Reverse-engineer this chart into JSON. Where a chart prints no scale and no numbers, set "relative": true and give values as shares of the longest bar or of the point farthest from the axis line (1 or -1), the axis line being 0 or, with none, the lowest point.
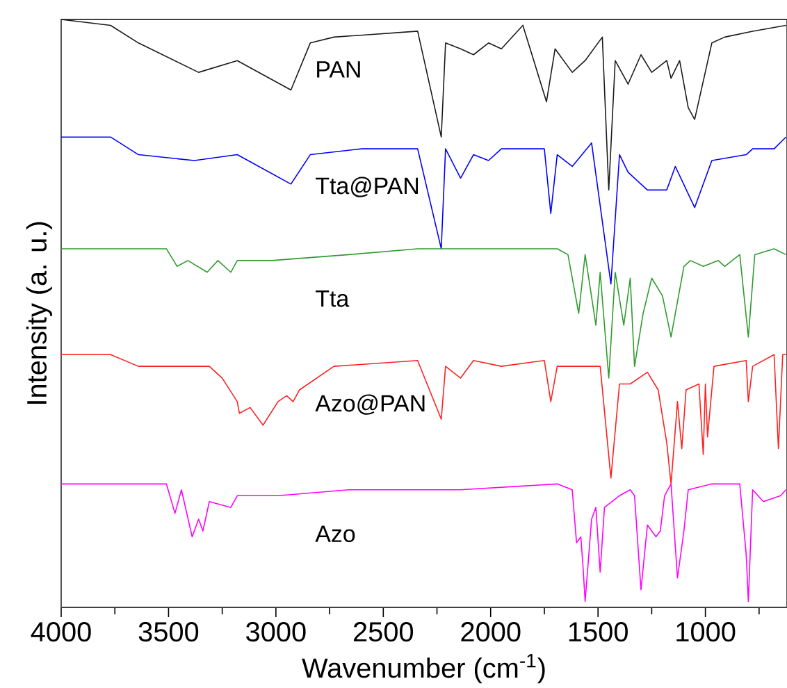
{
  "chart_data": {
    "type": "line",
    "relative": true,
    "xlabel": "Wavenumber (cm$^{-1}$)",
    "ylabel": "Intensity (a. u.)",
    "xlim": [
      4000,
      620
    ],
    "xticks": [
      4000,
      {
        "value": 3750,
        "label": null
      },
      3500,
      {
        "value": 3250,
        "label": null
      },
      3000,
      {
        "value": 2750,
        "label": null
      },
      2500,
      {
        "value": 2250,
        "label": null
      },
      2000,
      {
        "value": 1750,
        "label": null
      },
      1500,
      {
        "value": 1250,
        "label": null
      },
      1000,
      {
        "value": 750,
        "label": null
      }
    ],
    "line_style": "solid",
    "marker": "none",
    "grid": false,
    "series": [
      {
        "name": "PAN",
        "color": "#1a1a1a",
        "x": [
          4000,
          3770,
          3640,
          3360,
          3180,
          2930,
          2840,
          2730,
          2340,
          2230,
          2210,
          2140,
          2080,
          2010,
          1950,
          1850,
          1740,
          1700,
          1620,
          1560,
          1480,
          1450,
          1420,
          1360,
          1300,
          1250,
          1180,
          1160,
          1120,
          1080,
          1050,
          970,
          910,
          780,
          625
        ],
        "values": [
          1,
          0.99,
          0.96,
          0.91,
          0.93,
          0.88,
          0.96,
          0.97,
          0.98,
          0.8,
          0.96,
          0.95,
          0.94,
          0.96,
          0.95,
          0.99,
          0.86,
          0.95,
          0.91,
          0.93,
          0.97,
          0.71,
          0.93,
          0.89,
          0.94,
          0.91,
          0.93,
          0.9,
          0.93,
          0.85,
          0.83,
          0.96,
          0.97,
          0.98,
          0.99
        ]
      },
      {
        "name": "Tta@PAN",
        "color": "#0000ff",
        "x": [
          4000,
          3770,
          3640,
          3380,
          3180,
          2930,
          2840,
          2600,
          2340,
          2230,
          2210,
          2140,
          2080,
          2010,
          1950,
          1750,
          1720,
          1690,
          1620,
          1530,
          1440,
          1400,
          1360,
          1270,
          1180,
          1140,
          1050,
          970,
          810,
          780,
          680,
          625
        ],
        "values": [
          0.8,
          0.8,
          0.77,
          0.76,
          0.77,
          0.72,
          0.77,
          0.78,
          0.78,
          0.61,
          0.78,
          0.73,
          0.77,
          0.76,
          0.78,
          0.78,
          0.67,
          0.77,
          0.75,
          0.79,
          0.55,
          0.77,
          0.74,
          0.71,
          0.71,
          0.75,
          0.68,
          0.76,
          0.77,
          0.78,
          0.78,
          0.8
        ]
      },
      {
        "name": "Tta",
        "color": "#2e9b2e",
        "x": [
          4000,
          3510,
          3460,
          3410,
          3320,
          3270,
          3210,
          3180,
          3020,
          2660,
          2340,
          1690,
          1640,
          1590,
          1560,
          1510,
          1490,
          1450,
          1420,
          1380,
          1350,
          1330,
          1290,
          1250,
          1200,
          1160,
          1100,
          1070,
          1010,
          940,
          910,
          840,
          800,
          770,
          680,
          625
        ],
        "values": [
          0.61,
          0.61,
          0.58,
          0.59,
          0.57,
          0.59,
          0.57,
          0.59,
          0.59,
          0.6,
          0.61,
          0.61,
          0.6,
          0.5,
          0.6,
          0.48,
          0.57,
          0.39,
          0.57,
          0.48,
          0.56,
          0.41,
          0.5,
          0.56,
          0.53,
          0.46,
          0.58,
          0.59,
          0.58,
          0.59,
          0.58,
          0.6,
          0.46,
          0.6,
          0.61,
          0.6
        ]
      },
      {
        "name": "Azo@PAN",
        "color": "#ff2020",
        "x": [
          4000,
          3770,
          3640,
          3440,
          3310,
          3250,
          3180,
          3170,
          3120,
          3060,
          2990,
          2950,
          2920,
          2890,
          2730,
          2340,
          2230,
          2210,
          2140,
          2080,
          1950,
          1750,
          1720,
          1690,
          1490,
          1440,
          1400,
          1350,
          1270,
          1220,
          1180,
          1160,
          1130,
          1110,
          1090,
          1030,
          1010,
          1000,
          990,
          960,
          810,
          800,
          780,
          680,
          660,
          640,
          625
        ],
        "values": [
          0.43,
          0.43,
          0.41,
          0.41,
          0.41,
          0.39,
          0.35,
          0.33,
          0.34,
          0.31,
          0.35,
          0.36,
          0.35,
          0.37,
          0.41,
          0.42,
          0.32,
          0.41,
          0.39,
          0.42,
          0.41,
          0.42,
          0.35,
          0.41,
          0.41,
          0.22,
          0.38,
          0.38,
          0.4,
          0.37,
          0.28,
          0.21,
          0.35,
          0.27,
          0.37,
          0.38,
          0.26,
          0.38,
          0.29,
          0.41,
          0.42,
          0.35,
          0.41,
          0.43,
          0.27,
          0.43,
          0.43
        ]
      },
      {
        "name": "Azo",
        "color": "#ff00ff",
        "x": [
          4000,
          3510,
          3470,
          3440,
          3390,
          3360,
          3340,
          3310,
          3210,
          3180,
          2990,
          2660,
          2340,
          2140,
          1690,
          1620,
          1600,
          1580,
          1570,
          1560,
          1530,
          1510,
          1490,
          1470,
          1400,
          1350,
          1330,
          1300,
          1270,
          1230,
          1210,
          1190,
          1160,
          1130,
          1100,
          1080,
          970,
          840,
          810,
          800,
          780,
          730,
          650,
          625
        ],
        "values": [
          0.21,
          0.21,
          0.16,
          0.2,
          0.12,
          0.15,
          0.13,
          0.18,
          0.17,
          0.19,
          0.19,
          0.2,
          0.2,
          0.2,
          0.21,
          0.2,
          0.11,
          0.12,
          0.07,
          0.01,
          0.15,
          0.17,
          0.06,
          0.17,
          0.19,
          0.2,
          0.19,
          0.03,
          0.14,
          0.12,
          0.13,
          0.19,
          0.21,
          0.05,
          0.13,
          0.2,
          0.21,
          0.21,
          0.09,
          0.01,
          0.2,
          0.18,
          0.19,
          0.2
        ]
      }
    ]
  }
}
